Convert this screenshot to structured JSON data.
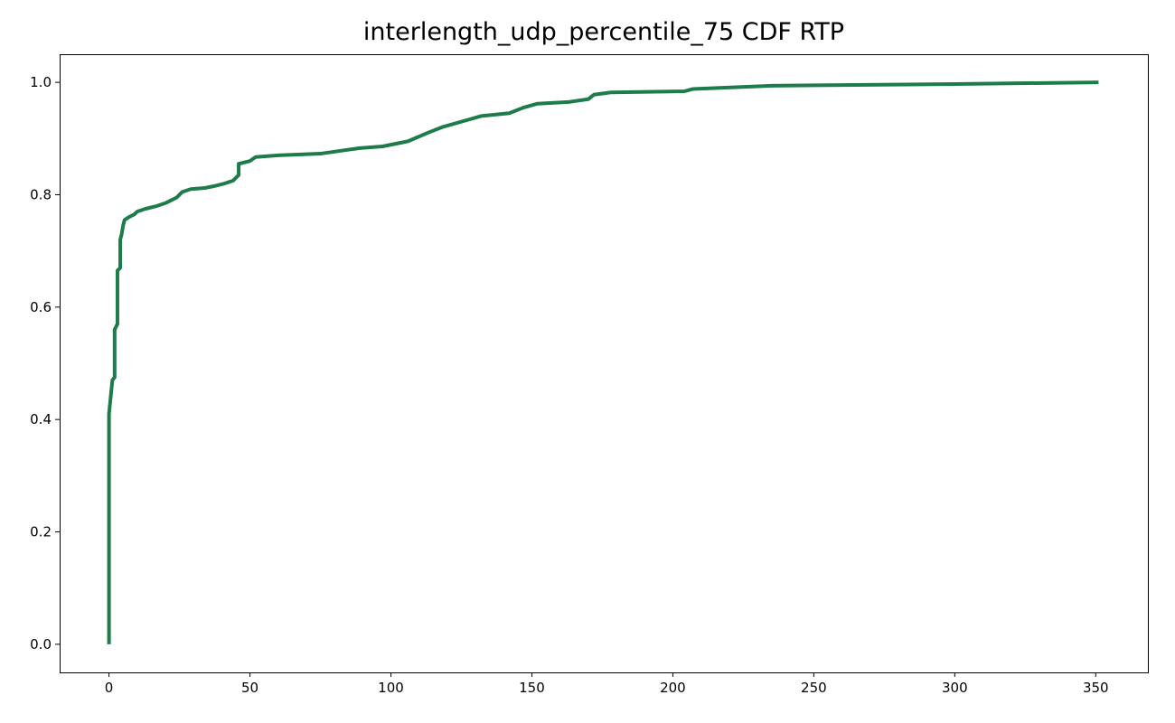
{
  "chart_data": {
    "type": "line",
    "title": "interlength_udp_percentile_75 CDF RTP",
    "xlabel": "",
    "ylabel": "",
    "xlim": [
      -17.5,
      368.5
    ],
    "ylim": [
      -0.05,
      1.05
    ],
    "x_ticks": [
      0,
      50,
      100,
      150,
      200,
      250,
      300,
      350
    ],
    "y_ticks": [
      0.0,
      0.2,
      0.4,
      0.6,
      0.8,
      1.0
    ],
    "y_tick_labels": [
      "0.0",
      "0.2",
      "0.4",
      "0.6",
      "0.8",
      "1.0"
    ],
    "grid": false,
    "series": [
      {
        "color": "#1e7b4a",
        "points": [
          [
            0,
            0.0
          ],
          [
            0,
            0.41
          ],
          [
            0.4,
            0.43
          ],
          [
            0.8,
            0.45
          ],
          [
            1.2,
            0.47
          ],
          [
            2,
            0.475
          ],
          [
            2,
            0.56
          ],
          [
            3,
            0.57
          ],
          [
            3,
            0.665
          ],
          [
            4,
            0.67
          ],
          [
            4,
            0.72
          ],
          [
            4.5,
            0.73
          ],
          [
            5,
            0.745
          ],
          [
            5.5,
            0.755
          ],
          [
            7,
            0.76
          ],
          [
            9,
            0.765
          ],
          [
            10,
            0.77
          ],
          [
            13,
            0.775
          ],
          [
            17,
            0.78
          ],
          [
            20,
            0.785
          ],
          [
            24,
            0.795
          ],
          [
            26,
            0.805
          ],
          [
            29,
            0.81
          ],
          [
            34,
            0.812
          ],
          [
            37,
            0.815
          ],
          [
            41,
            0.82
          ],
          [
            44,
            0.825
          ],
          [
            46,
            0.835
          ],
          [
            46,
            0.855
          ],
          [
            50,
            0.86
          ],
          [
            52,
            0.867
          ],
          [
            60,
            0.87
          ],
          [
            75,
            0.873
          ],
          [
            89,
            0.883
          ],
          [
            97,
            0.886
          ],
          [
            106,
            0.895
          ],
          [
            113,
            0.91
          ],
          [
            118,
            0.92
          ],
          [
            125,
            0.93
          ],
          [
            132,
            0.94
          ],
          [
            142,
            0.945
          ],
          [
            147,
            0.955
          ],
          [
            152,
            0.962
          ],
          [
            163,
            0.965
          ],
          [
            170,
            0.97
          ],
          [
            172,
            0.978
          ],
          [
            178,
            0.982
          ],
          [
            204,
            0.984
          ],
          [
            207,
            0.988
          ],
          [
            235,
            0.994
          ],
          [
            300,
            0.997
          ],
          [
            351,
            1.0
          ]
        ]
      }
    ]
  }
}
